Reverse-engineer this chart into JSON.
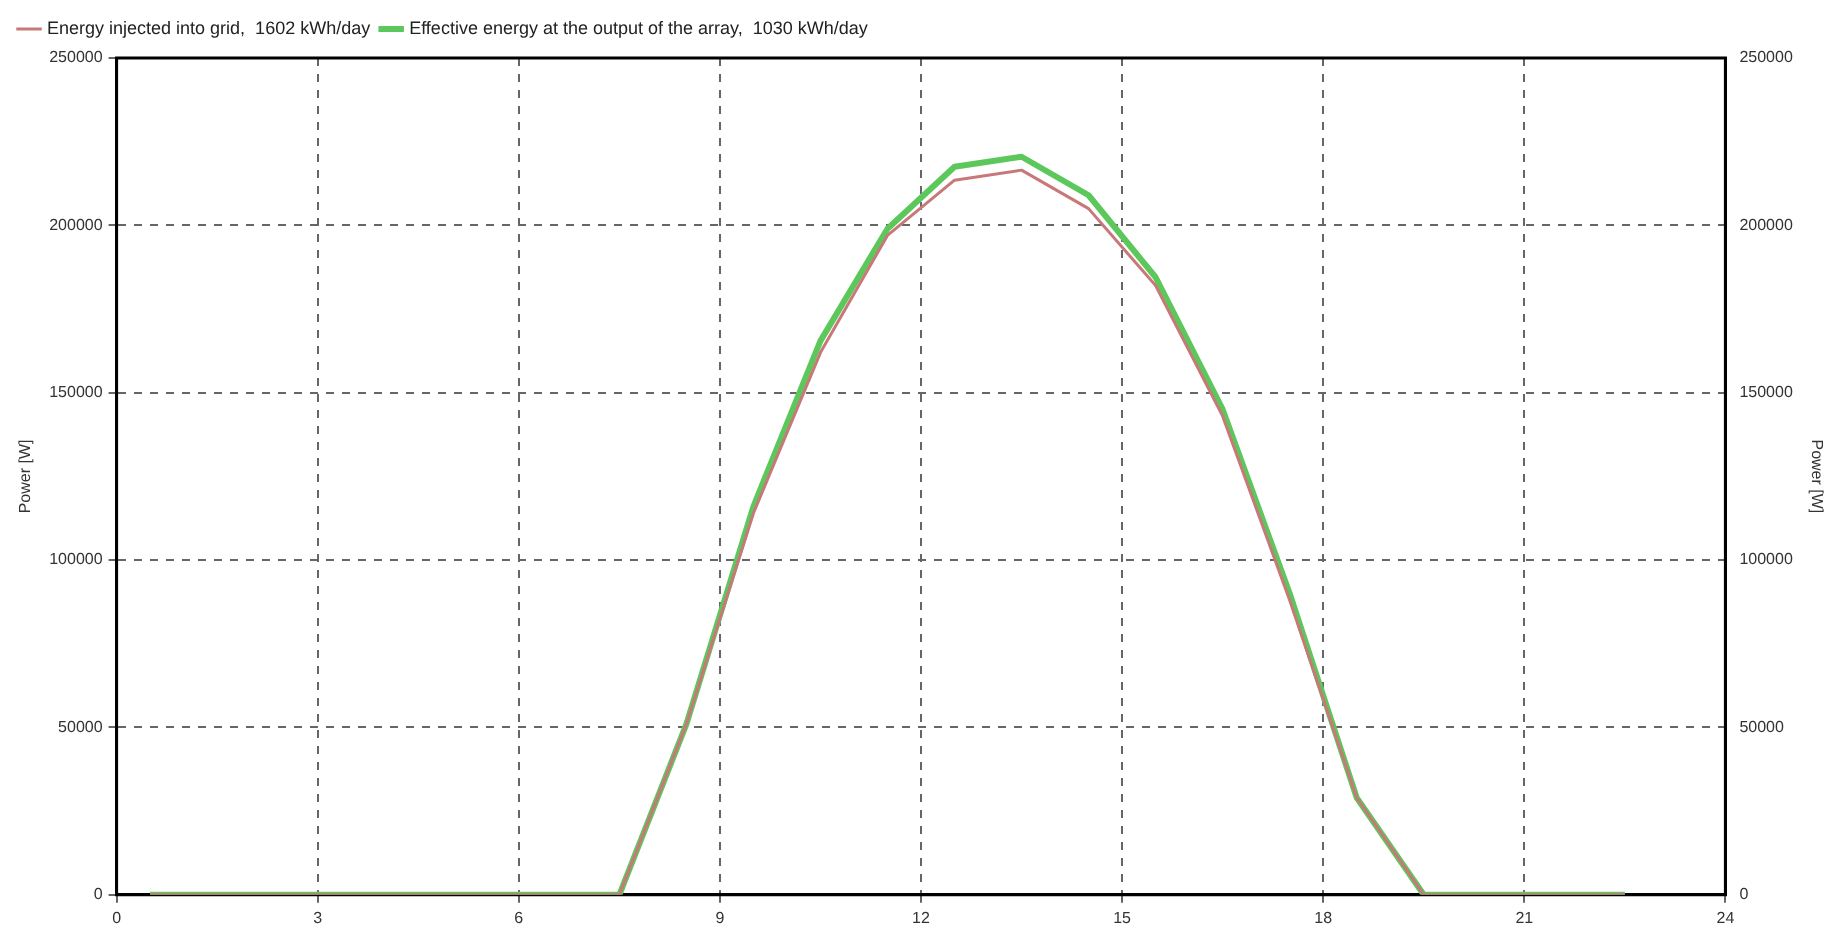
{
  "chart_data": {
    "type": "line",
    "xlabel": null,
    "ylabel": "Power [W]",
    "y2label": "Power [W]",
    "xlim": [
      0,
      24
    ],
    "xticks": [
      0,
      3,
      6,
      9,
      12,
      15,
      18,
      21,
      24
    ],
    "ylim": [
      0,
      250000
    ],
    "yticks": [
      0,
      50000,
      100000,
      150000,
      200000,
      250000
    ],
    "y2lim": [
      0,
      250000
    ],
    "y2ticks": [
      0,
      50000,
      100000,
      150000,
      200000,
      250000
    ],
    "x": [
      0.5,
      7.5,
      8.5,
      9.5,
      10.5,
      11.5,
      12.5,
      13.5,
      14.5,
      15.5,
      16.5,
      17.5,
      18.5,
      19.5,
      22.5
    ],
    "series": [
      {
        "name": "Energy injected into grid,  1602 kWh/day",
        "color": "#c87878",
        "values": [
          0,
          0,
          51000,
          114000,
          162000,
          197000,
          213500,
          216500,
          205000,
          182000,
          143000,
          88000,
          29000,
          0,
          0
        ]
      },
      {
        "name": "Effective energy at the output of the array,  1030 kWh/day",
        "color": "#5cc85c",
        "values": [
          0,
          0,
          51000,
          116000,
          165500,
          199000,
          217500,
          220500,
          209000,
          184500,
          145000,
          90000,
          29000,
          0,
          0
        ]
      }
    ],
    "grid": true,
    "line_style": "solid",
    "marker": "none",
    "legend": "top left"
  }
}
